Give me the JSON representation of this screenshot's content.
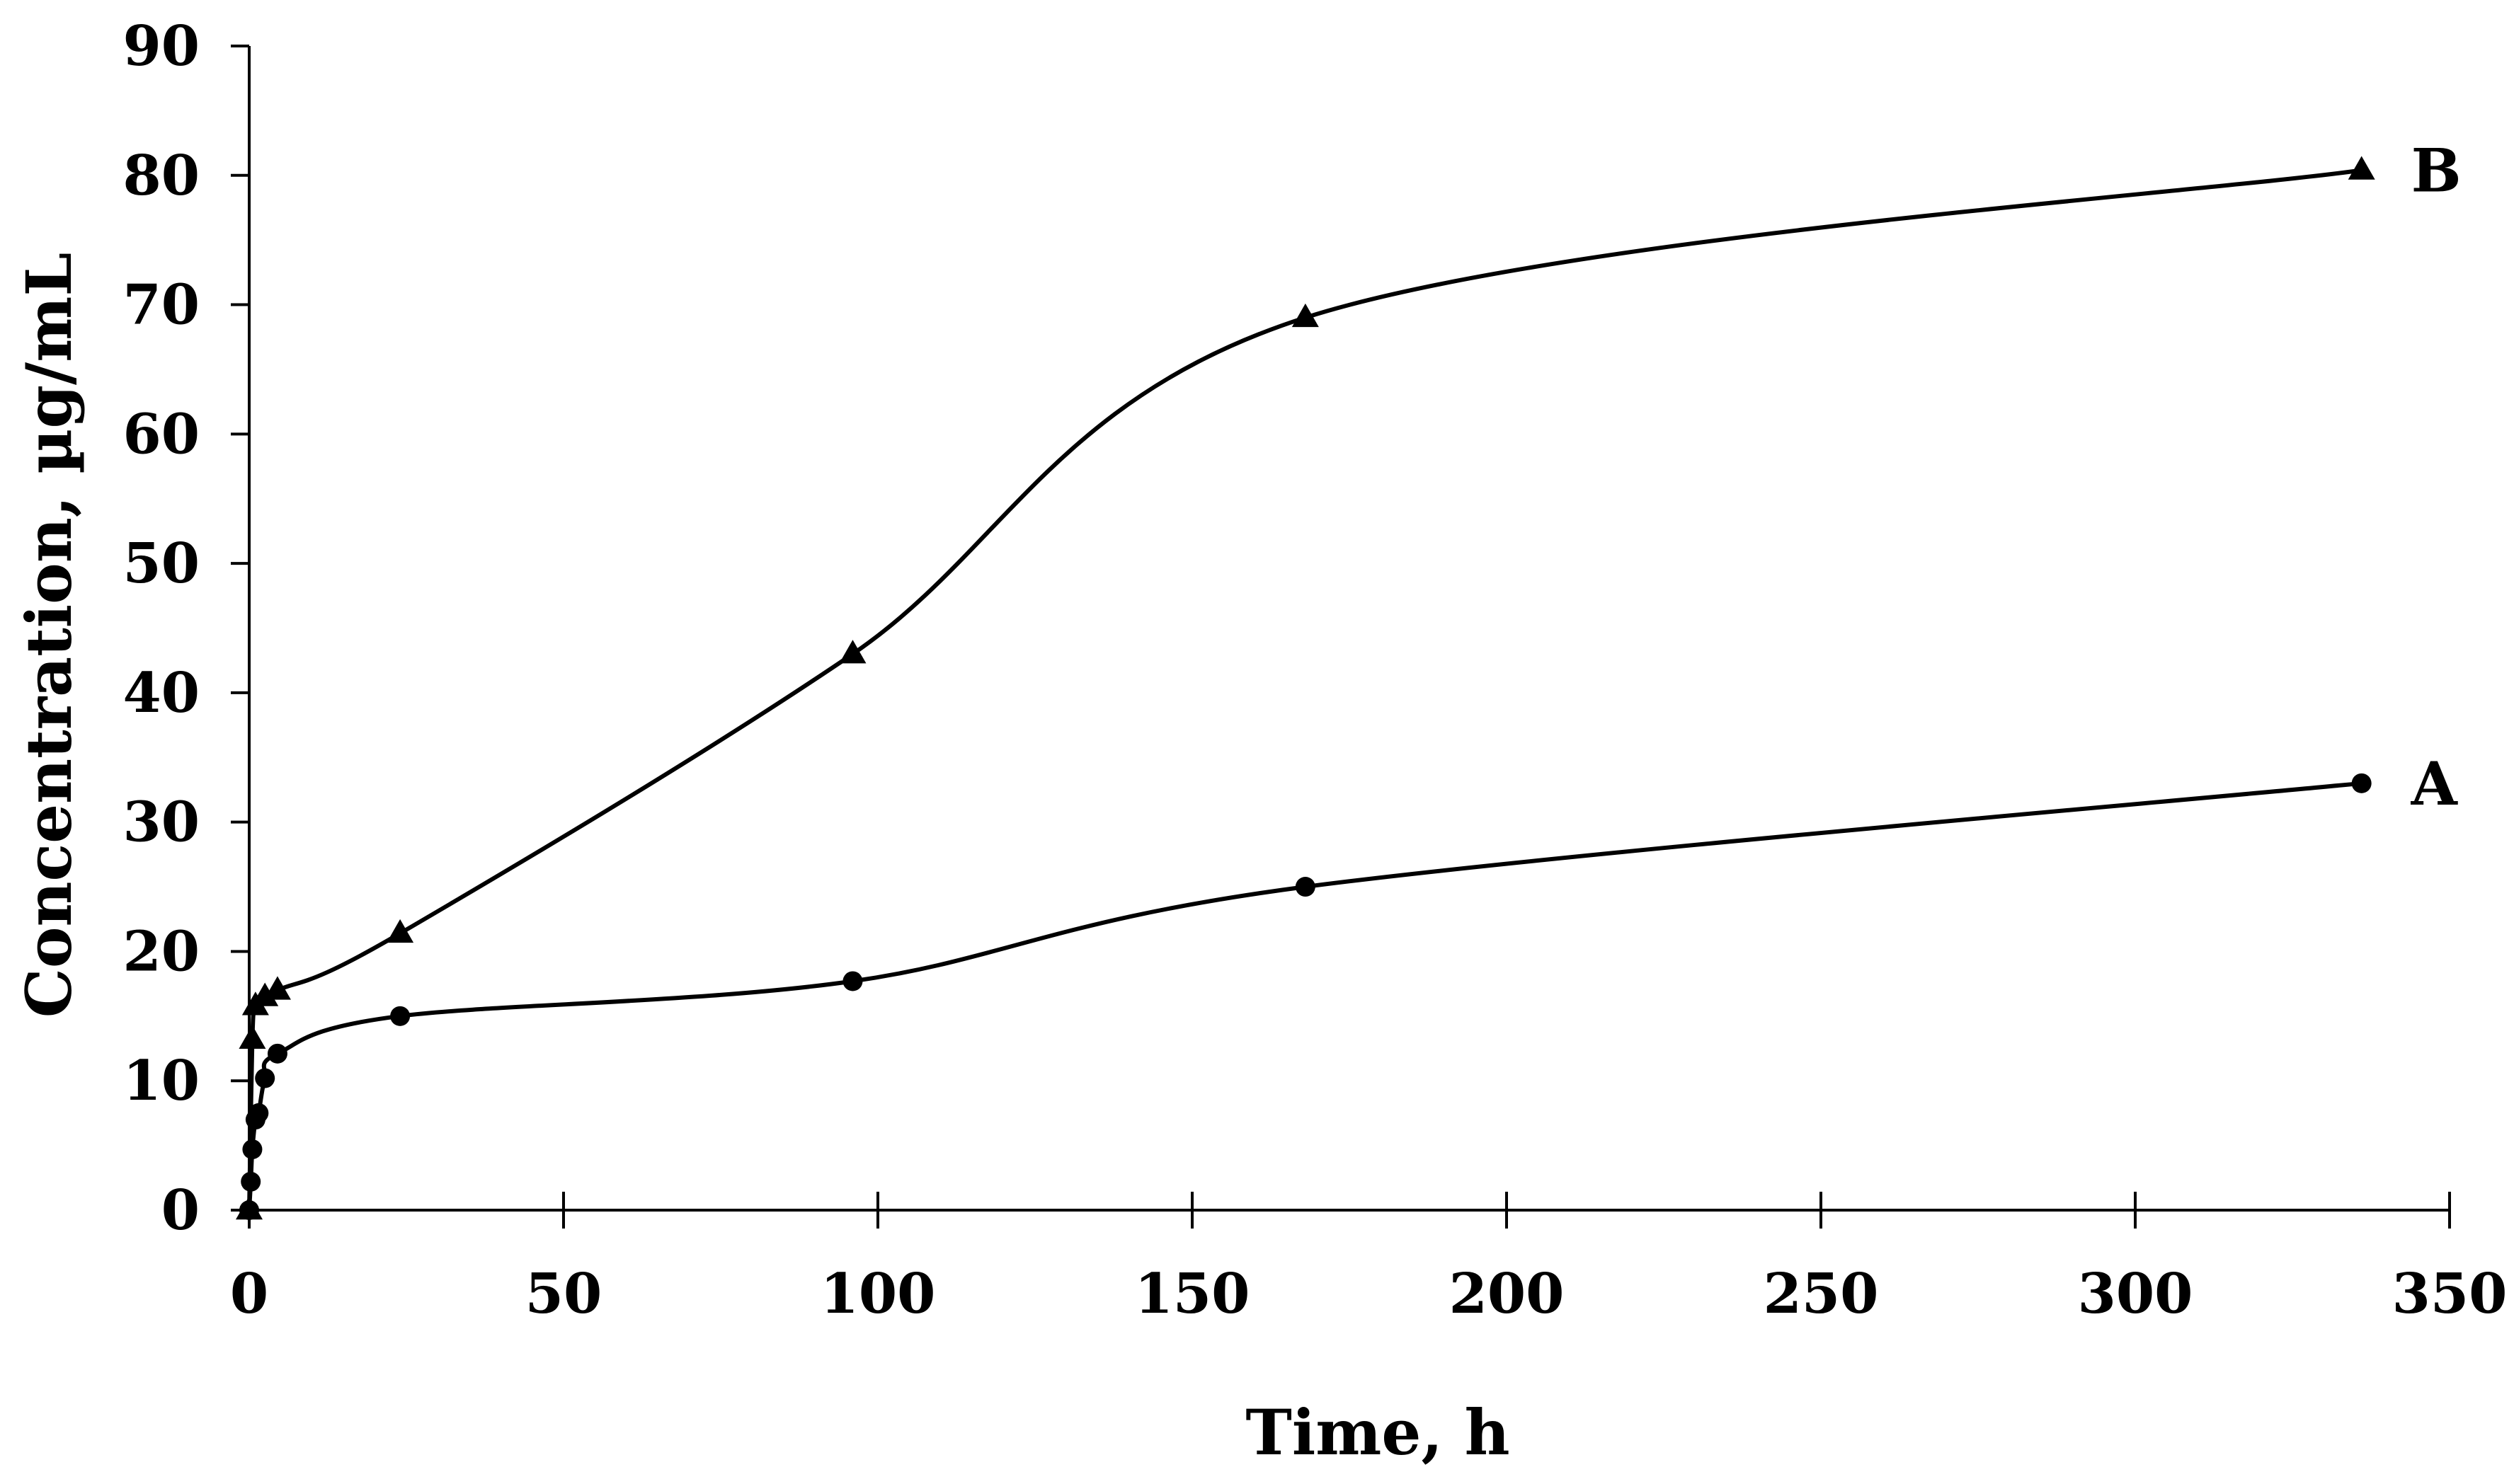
{
  "chart_data": {
    "type": "line",
    "xlabel": "Time, h",
    "ylabel": "Concentration, µg/mL",
    "xlim": [
      0,
      350
    ],
    "ylim": [
      0,
      90
    ],
    "xticks": [
      0,
      50,
      100,
      150,
      200,
      250,
      300,
      350
    ],
    "yticks": [
      0,
      10,
      20,
      30,
      40,
      50,
      60,
      70,
      80,
      90
    ],
    "grid": false,
    "legend": "none",
    "series": [
      {
        "name": "A",
        "marker": "circle",
        "color": "#000000",
        "x": [
          0,
          0.25,
          0.5,
          1,
          1.5,
          2.5,
          4.5,
          24,
          96,
          168,
          336
        ],
        "y": [
          0,
          2.2,
          4.7,
          7.0,
          7.5,
          10.2,
          12.1,
          15.0,
          17.7,
          25.0,
          33.0
        ]
      },
      {
        "name": "B",
        "marker": "triangle",
        "color": "#000000",
        "x": [
          0,
          0.5,
          1,
          2.5,
          4.5,
          24,
          96,
          168,
          336
        ],
        "y": [
          0,
          13.2,
          15.8,
          16.5,
          17.0,
          21.4,
          43.0,
          69.0,
          80.4
        ]
      }
    ]
  }
}
